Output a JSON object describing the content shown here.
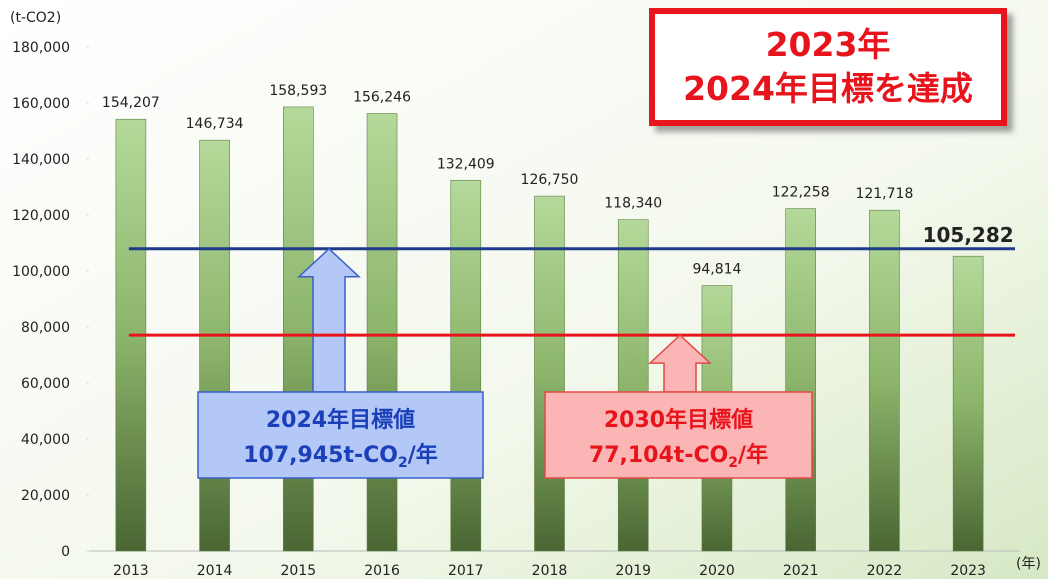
{
  "chart_data": {
    "type": "bar",
    "y_unit": "(t-CO2)",
    "x_unit": "(年)",
    "categories": [
      "2013",
      "2014",
      "2015",
      "2016",
      "2017",
      "2018",
      "2019",
      "2020",
      "2021",
      "2022",
      "2023"
    ],
    "values": [
      154207,
      146734,
      158593,
      156246,
      132409,
      126750,
      118340,
      94814,
      122258,
      121718,
      105282
    ],
    "value_labels": [
      "154,207",
      "146,734",
      "158,593",
      "156,246",
      "132,409",
      "126,750",
      "118,340",
      "94,814",
      "122,258",
      "121,718",
      "105,282"
    ],
    "color": "#8fbf6a",
    "ylim": [
      0,
      180000
    ],
    "yticks": [
      0,
      {
        "value": 20000,
        "label": "20,000"
      },
      {
        "value": 40000,
        "label": "40,000"
      },
      {
        "value": 60000,
        "label": "60,000"
      },
      {
        "value": 80000,
        "label": "80,000"
      },
      {
        "value": 100000,
        "label": "100,000"
      },
      {
        "value": 120000,
        "label": "120,000"
      },
      {
        "value": 140000,
        "label": "140,000"
      },
      {
        "value": 160000,
        "label": "160,000"
      },
      {
        "value": 180000,
        "label": "180,000"
      }
    ],
    "target_lines": [
      {
        "name": "2024年目標値",
        "value": 107945,
        "color": "#1f3a8a",
        "label_parts": [
          "107,945t-CO",
          "2",
          "/年"
        ]
      },
      {
        "name": "2030年目標値",
        "value": 77104,
        "color": "#e8141b",
        "label_parts": [
          "77,104t-CO",
          "2",
          "/年"
        ]
      }
    ],
    "badge": [
      "2023年",
      "2024年目標を達成"
    ]
  }
}
